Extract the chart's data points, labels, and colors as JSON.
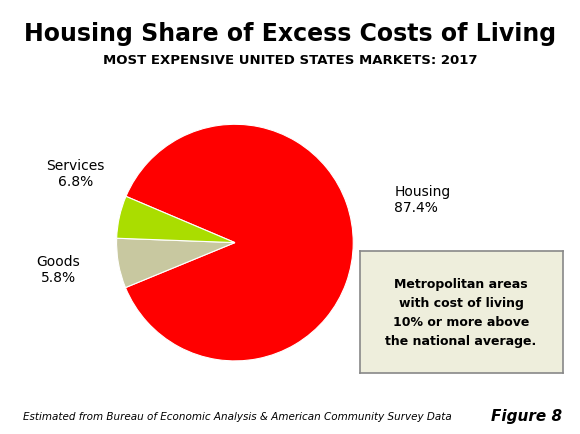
{
  "title": "Housing Share of Excess Costs of Living",
  "subtitle": "MOST EXPENSIVE UNITED STATES MARKETS: 2017",
  "slices": [
    87.4,
    6.8,
    5.8
  ],
  "labels": [
    "Housing",
    "Services",
    "Goods"
  ],
  "colors": [
    "#ff0000",
    "#c8c8a0",
    "#aadd00"
  ],
  "footnote": "Estimated from Bureau of Economic Analysis & American Community Survey Data",
  "figure_label": "Figure 8",
  "box_text": "Metropolitan areas\nwith cost of living\n10% or more above\nthe national average.",
  "startangle": -202
}
